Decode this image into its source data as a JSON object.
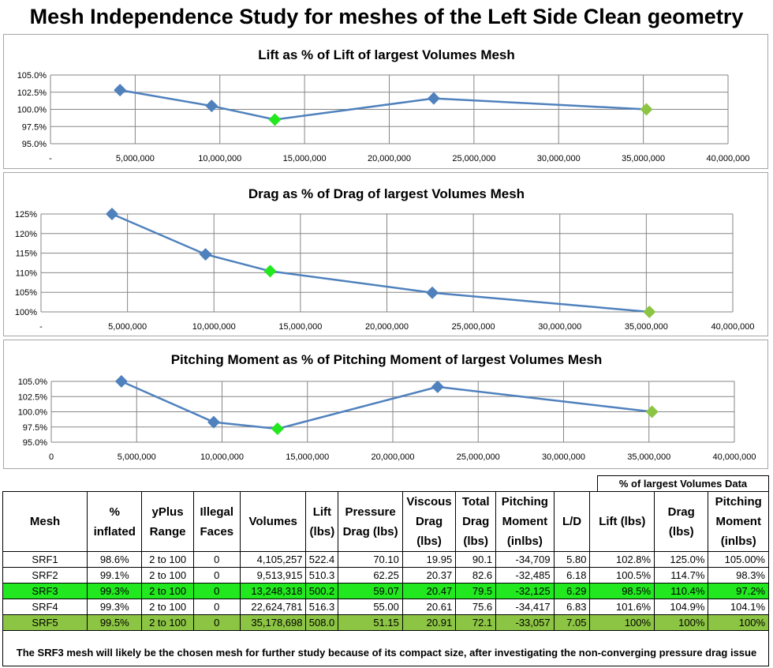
{
  "page_title": "Mesh Independence Study for meshes of the Left Side Clean geometry",
  "chart_data": [
    {
      "type": "line",
      "title": "Lift as % of Lift of largest Volumes Mesh",
      "x_tick_labels": [
        "-",
        "5,000,000",
        "10,000,000",
        "15,000,000",
        "20,000,000",
        "25,000,000",
        "30,000,000",
        "35,000,000",
        "40,000,000"
      ],
      "y_tick_labels": [
        "105.0%",
        "102.5%",
        "100.0%",
        "97.5%",
        "95.0%"
      ],
      "xlim": [
        0,
        40000000
      ],
      "ylim": [
        95.0,
        105.0
      ],
      "x": [
        4105257,
        9513915,
        13248318,
        22624781,
        35178698
      ],
      "y": [
        102.8,
        100.5,
        98.5,
        101.6,
        100.0
      ],
      "line_color": "#4f81bd",
      "marker_colors": [
        "#4f81bd",
        "#4f81bd",
        "#22e81f",
        "#4f81bd",
        "#8cc443"
      ],
      "grid": true
    },
    {
      "type": "line",
      "title": "Drag as % of Drag of largest Volumes Mesh",
      "x_tick_labels": [
        "-",
        "5,000,000",
        "10,000,000",
        "15,000,000",
        "20,000,000",
        "25,000,000",
        "30,000,000",
        "35,000,000",
        "40,000,000"
      ],
      "y_tick_labels": [
        "125%",
        "120%",
        "115%",
        "110%",
        "105%",
        "100%"
      ],
      "xlim": [
        0,
        40000000
      ],
      "ylim": [
        100,
        125
      ],
      "x": [
        4105257,
        9513915,
        13248318,
        22624781,
        35178698
      ],
      "y": [
        125.0,
        114.7,
        110.4,
        104.9,
        100.0
      ],
      "line_color": "#4f81bd",
      "marker_colors": [
        "#4f81bd",
        "#4f81bd",
        "#22e81f",
        "#4f81bd",
        "#8cc443"
      ],
      "grid": true
    },
    {
      "type": "line",
      "title": "Pitching Moment as % of Pitching Moment of largest Volumes Mesh",
      "x_tick_labels": [
        "0",
        "5,000,000",
        "10,000,000",
        "15,000,000",
        "20,000,000",
        "25,000,000",
        "30,000,000",
        "35,000,000",
        "40,000,000"
      ],
      "y_tick_labels": [
        "105.0%",
        "102.5%",
        "100.0%",
        "97.5%",
        "95.0%"
      ],
      "xlim": [
        0,
        40000000
      ],
      "ylim": [
        95.0,
        105.0
      ],
      "x": [
        4105257,
        9513915,
        13248318,
        22624781,
        35178698
      ],
      "y": [
        105.0,
        98.3,
        97.2,
        104.1,
        100.0
      ],
      "line_color": "#4f81bd",
      "marker_colors": [
        "#4f81bd",
        "#4f81bd",
        "#22e81f",
        "#4f81bd",
        "#8cc443"
      ],
      "grid": true
    }
  ],
  "table": {
    "group_header": "% of largest Volumes Data",
    "headers": [
      "Mesh",
      "% inflated",
      "yPlus Range",
      "Illegal Faces",
      "Volumes",
      "Lift (lbs)",
      "Pressure Drag (lbs)",
      "Viscous Drag (lbs)",
      "Total Drag (lbs)",
      "Pitching Moment (inlbs)",
      "L/D",
      "Lift (lbs)",
      "Drag (lbs)",
      "Pitching Moment (inlbs)"
    ],
    "rows": [
      [
        "SRF1",
        "98.6%",
        "2 to 100",
        "0",
        "4,105,257",
        "522.4",
        "70.10",
        "19.95",
        "90.1",
        "-34,709",
        "5.80",
        "102.8%",
        "125.0%",
        "105.00%"
      ],
      [
        "SRF2",
        "99.1%",
        "2 to 100",
        "0",
        "9,513,915",
        "510.3",
        "62.25",
        "20.37",
        "82.6",
        "-32,485",
        "6.18",
        "100.5%",
        "114.7%",
        "98.3%"
      ],
      [
        "SRF3",
        "99.3%",
        "2 to 100",
        "0",
        "13,248,318",
        "500.2",
        "59.07",
        "20.47",
        "79.5",
        "-32,125",
        "6.29",
        "98.5%",
        "110.4%",
        "97.2%"
      ],
      [
        "SRF4",
        "99.3%",
        "2 to 100",
        "0",
        "22,624,781",
        "516.3",
        "55.00",
        "20.61",
        "75.6",
        "-34,417",
        "6.83",
        "101.6%",
        "104.9%",
        "104.1%"
      ],
      [
        "SRF5",
        "99.5%",
        "2 to 100",
        "0",
        "35,178,698",
        "508.0",
        "51.15",
        "20.91",
        "72.1",
        "-33,057",
        "7.05",
        "100%",
        "100%",
        "100%"
      ]
    ],
    "row_highlights": [
      "",
      "",
      "#22e81f",
      "",
      "#8cc443"
    ]
  },
  "footnote": "The SRF3 mesh will likely be the chosen mesh for further study because of its compact size, after investigating the non-converging pressure drag issue"
}
